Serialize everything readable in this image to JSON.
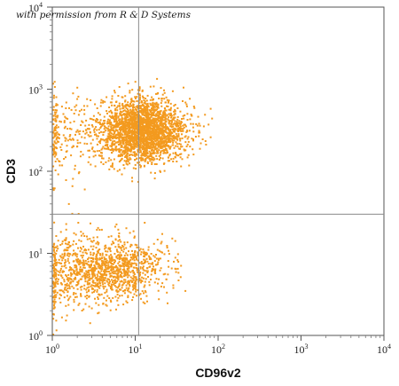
{
  "watermark": "with permission from R & D Systems",
  "chart_data": {
    "type": "scatter",
    "title": "",
    "xlabel": "CD96v2",
    "ylabel": "CD3",
    "x_scale": "log",
    "y_scale": "log",
    "xlim": [
      1,
      10000
    ],
    "ylim": [
      1,
      10000
    ],
    "x_ticks": [
      {
        "base": "10",
        "exp": "0",
        "value": 1
      },
      {
        "base": "10",
        "exp": "1",
        "value": 10
      },
      {
        "base": "10",
        "exp": "2",
        "value": 100
      },
      {
        "base": "10",
        "exp": "3",
        "value": 1000
      },
      {
        "base": "10",
        "exp": "4",
        "value": 10000
      }
    ],
    "y_ticks": [
      {
        "base": "10",
        "exp": "0",
        "value": 1
      },
      {
        "base": "10",
        "exp": "1",
        "value": 10
      },
      {
        "base": "10",
        "exp": "2",
        "value": 100
      },
      {
        "base": "10",
        "exp": "3",
        "value": 1000
      },
      {
        "base": "10",
        "exp": "4",
        "value": 10000
      }
    ],
    "quadrant_gates": {
      "x": 11,
      "y": 30
    },
    "dot_color": "#f39a1f",
    "populations": [
      {
        "center_x": 12,
        "center_y": 320,
        "spread_x": 0.26,
        "spread_y": 0.19,
        "count": 2600
      },
      {
        "center_x": 5,
        "center_y": 6.5,
        "spread_x": 0.32,
        "spread_y": 0.19,
        "count": 1100
      },
      {
        "center_x": 1.3,
        "center_y": 300,
        "spread_x": 0.18,
        "spread_y": 0.25,
        "count": 180
      },
      {
        "center_x": 1.3,
        "center_y": 6,
        "spread_x": 0.18,
        "spread_y": 0.28,
        "count": 220
      }
    ]
  }
}
